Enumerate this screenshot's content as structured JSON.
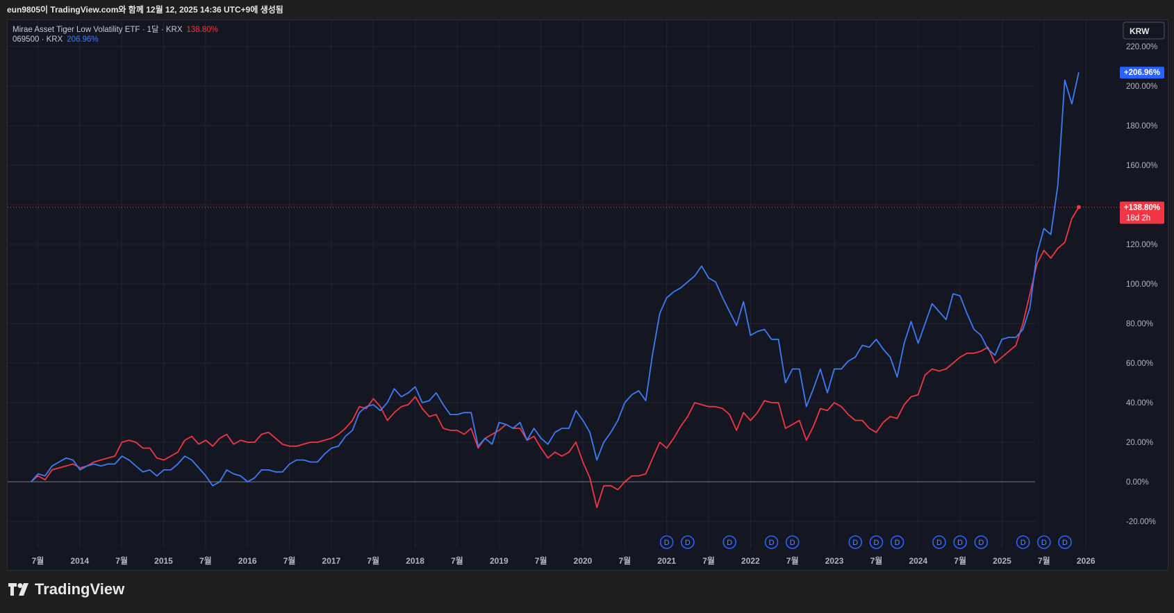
{
  "header": {
    "caption": "eun9805이 TradingView.com와 함께 12월 12, 2025 14:36 UTC+9에 생성됨"
  },
  "legend": {
    "series1_label": "Mirae Asset Tiger Low Volatility ETF · 1달 · KRX",
    "series1_value": "138.80%",
    "series2_label": "069500 · KRX",
    "series2_value": "206.96%"
  },
  "currency_label": "KRW",
  "price_tags": {
    "blue": "+206.96%",
    "red_value": "+138.80%",
    "red_countdown": "18d 2h"
  },
  "brand": "TradingView",
  "colors": {
    "red": "#f23645",
    "blue": "#2962ff",
    "blue_line": "#3d7cf5",
    "background": "#141722",
    "grid": "#232632",
    "text": "#c9ccd6"
  },
  "chart_data": {
    "type": "line",
    "y_unit": "%",
    "ylim": [
      -30,
      230
    ],
    "y_ticks": [
      "220.00%",
      "200.00%",
      "180.00%",
      "160.00%",
      "140.00%",
      "120.00%",
      "100.00%",
      "80.00%",
      "60.00%",
      "40.00%",
      "20.00%",
      "0.00%",
      "-20.00%"
    ],
    "y_tick_values": [
      220,
      200,
      180,
      160,
      140,
      120,
      100,
      80,
      60,
      40,
      20,
      0,
      -20
    ],
    "x_ticks": [
      "7월",
      "2014",
      "7월",
      "2015",
      "7월",
      "2016",
      "7월",
      "2017",
      "7월",
      "2018",
      "7월",
      "2019",
      "7월",
      "2020",
      "7월",
      "2021",
      "7월",
      "2022",
      "7월",
      "2023",
      "7월",
      "2024",
      "7월",
      "2025",
      "7월",
      "2026"
    ],
    "x_tick_dates": [
      2013.5,
      2014,
      2014.5,
      2015,
      2015.5,
      2016,
      2016.5,
      2017,
      2017.5,
      2018,
      2018.5,
      2019,
      2019.5,
      2020,
      2020.5,
      2021,
      2021.5,
      2022,
      2022.5,
      2023,
      2023.5,
      2024,
      2024.5,
      2025,
      2025.5,
      2026
    ],
    "x_range": [
      2013.25,
      2026.25
    ],
    "dividend_marker_label": "D",
    "dividend_dates": [
      2021.0,
      2021.25,
      2021.75,
      2022.25,
      2022.5,
      2023.25,
      2023.5,
      2023.75,
      2024.25,
      2024.5,
      2024.75,
      2025.25,
      2025.5,
      2025.75
    ],
    "grid": true,
    "series": [
      {
        "name": "Mirae Asset Tiger Low Volatility ETF",
        "color": "#f23645",
        "x_start": 2013.42,
        "x_step": 0.0833,
        "values": [
          0,
          3,
          1,
          6,
          7,
          8,
          9,
          7,
          8,
          10,
          11,
          12,
          13,
          20,
          21,
          20,
          17,
          17,
          12,
          11,
          13,
          15,
          21,
          23,
          19,
          21,
          18,
          22,
          24,
          19,
          21,
          20,
          20,
          24,
          25,
          22,
          19,
          18,
          18,
          19,
          20,
          20,
          21,
          22,
          24,
          27,
          31,
          38,
          37,
          42,
          38,
          31,
          35,
          38,
          39,
          43,
          37,
          33,
          34,
          27,
          26,
          26,
          24,
          27,
          17,
          22,
          24,
          26,
          29,
          27,
          27,
          21,
          23,
          17,
          12,
          15,
          13,
          15,
          20,
          10,
          2,
          -13,
          -2,
          -2,
          -4,
          0,
          3,
          3,
          4,
          12,
          20,
          17,
          22,
          28,
          33,
          40,
          39,
          38,
          38,
          37,
          34,
          26,
          35,
          31,
          35,
          41,
          40,
          40,
          27,
          29,
          31,
          21,
          28,
          37,
          36,
          40,
          38,
          34,
          31,
          31,
          27,
          25,
          30,
          33,
          32,
          39,
          43,
          44,
          54,
          57,
          56,
          57,
          60,
          63,
          65,
          65,
          66,
          68,
          60,
          63,
          66,
          69,
          80,
          95,
          110,
          117,
          113,
          118,
          121,
          133,
          138.8
        ]
      },
      {
        "name": "069500",
        "color": "#3d7cf5",
        "x_start": 2013.42,
        "x_step": 0.0833,
        "values": [
          0,
          4,
          3,
          8,
          10,
          12,
          11,
          6,
          8,
          9,
          8,
          9,
          9,
          13,
          11,
          8,
          5,
          6,
          3,
          6,
          6,
          9,
          13,
          11,
          7,
          3,
          -2,
          0,
          6,
          4,
          3,
          0,
          2,
          6,
          6,
          5,
          5,
          9,
          11,
          11,
          10,
          10,
          14,
          17,
          18,
          23,
          26,
          35,
          38,
          39,
          36,
          40,
          47,
          43,
          45,
          48,
          40,
          41,
          45,
          39,
          34,
          34,
          35,
          35,
          18,
          22,
          19,
          30,
          29,
          27,
          30,
          21,
          27,
          22,
          19,
          25,
          27,
          27,
          36,
          31,
          25,
          11,
          20,
          25,
          31,
          40,
          44,
          46,
          41,
          65,
          85,
          93,
          96,
          98,
          101,
          104,
          109,
          103,
          101,
          93,
          86,
          79,
          91,
          74,
          76,
          77,
          72,
          72,
          50,
          57,
          57,
          38,
          47,
          57,
          45,
          57,
          57,
          61,
          63,
          69,
          68,
          72,
          67,
          63,
          53,
          70,
          81,
          70,
          80,
          90,
          86,
          82,
          95,
          94,
          85,
          77,
          74,
          67,
          64,
          72,
          73,
          73,
          77,
          88,
          115,
          128,
          125,
          150,
          203,
          191,
          206.96
        ]
      }
    ]
  }
}
